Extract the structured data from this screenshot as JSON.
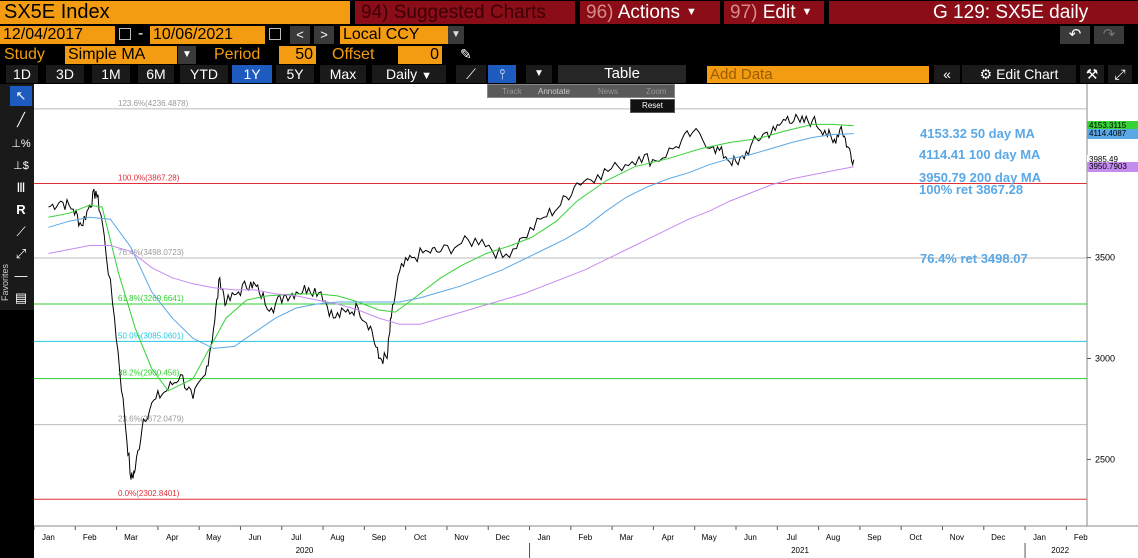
{
  "header": {
    "ticker": "SX5E Index",
    "suggested_num": "94)",
    "suggested_label": "Suggested Charts",
    "actions_num": "96)",
    "actions_label": "Actions",
    "edit_num": "97)",
    "edit_label": "Edit",
    "title": "G 129: SX5E daily"
  },
  "range": {
    "start_date": "12/04/2017",
    "separator": "-",
    "end_date": "10/06/2021",
    "currency": "Local CCY"
  },
  "study": {
    "study_label": "Study",
    "study_value": "Simple MA",
    "period_label": "Period",
    "period_value": "50",
    "offset_label": "Offset",
    "offset_value": "0"
  },
  "periods": [
    "1D",
    "3D",
    "1M",
    "6M",
    "YTD",
    "1Y",
    "5Y",
    "Max"
  ],
  "active_period": "1Y",
  "frequency": "Daily",
  "table_label": "Table",
  "add_data_placeholder": "Add Data",
  "edit_chart_label": "Edit Chart",
  "chart_tools": {
    "track": "Track",
    "annotate": "Annotate",
    "news": "News",
    "zoom": "Zoom",
    "reset": "Reset"
  },
  "sidebar": {
    "favorites_label": "Favorites"
  },
  "chart_data": {
    "type": "line",
    "x_months": [
      "Jan",
      "Feb",
      "Mar",
      "Apr",
      "May",
      "Jun",
      "Jul",
      "Aug",
      "Sep",
      "Oct",
      "Nov",
      "Dec",
      "Jan",
      "Feb",
      "Mar",
      "Apr",
      "May",
      "Jun",
      "Jul",
      "Aug",
      "Sep",
      "Oct",
      "Nov",
      "Dec",
      "Jan",
      "Feb"
    ],
    "x_years": [
      "2020",
      "2021",
      "2022"
    ],
    "y_ticks": [
      2500,
      3000,
      3500
    ],
    "ylim": [
      2170,
      4360
    ],
    "fib_levels": [
      {
        "label": "123.6%(4236.4878)",
        "value": 4236.4878,
        "color": "#bbbbbb"
      },
      {
        "label": "100.0%(3867.28)",
        "value": 3867.28,
        "color": "#e0303a"
      },
      {
        "label": "76.4%(3498.0723)",
        "value": 3498.0723,
        "color": "#bbbbbb"
      },
      {
        "label": "61.8%(3269.6641)",
        "value": 3269.6641,
        "color": "#2ed12e"
      },
      {
        "label": "50.0%(3085.0601)",
        "value": 3085.0601,
        "color": "#22c9e0"
      },
      {
        "label": "38.2%(2900.456)",
        "value": 2900.456,
        "color": "#2ed12e"
      },
      {
        "label": "23.6%(2672.0479)",
        "value": 2672.0479,
        "color": "#bbbbbb"
      },
      {
        "label": "0.0%(2302.8401)",
        "value": 2302.8401,
        "color": "#e0303a"
      }
    ],
    "annotations": [
      "4153.32 50 day MA",
      "4114.41 100 day MA",
      "3950.79 200 day MA",
      "100% ret 3867.28",
      "76.4% ret 3498.07"
    ],
    "price_labels": [
      {
        "text": "4153.3115",
        "value": 4153.3115,
        "color": "#36d236"
      },
      {
        "text": "4114.4087",
        "value": 4114.4087,
        "color": "#5aa8e6"
      },
      {
        "text": "3985.49",
        "value": 3985.49,
        "color": "#ffffff"
      },
      {
        "text": "3950.7903",
        "value": 3950.7903,
        "color": "#c58cf0"
      }
    ],
    "series": [
      {
        "name": "SX5E",
        "color": "#000000",
        "points": [
          [
            0.0,
            3750
          ],
          [
            0.3,
            3780
          ],
          [
            0.6,
            3740
          ],
          [
            0.8,
            3660
          ],
          [
            1.0,
            3760
          ],
          [
            1.15,
            3830
          ],
          [
            1.3,
            3680
          ],
          [
            1.6,
            3200
          ],
          [
            1.85,
            2700
          ],
          [
            2.0,
            2400
          ],
          [
            2.1,
            2450
          ],
          [
            2.3,
            2700
          ],
          [
            2.6,
            2800
          ],
          [
            2.9,
            2850
          ],
          [
            3.2,
            2920
          ],
          [
            3.5,
            2800
          ],
          [
            3.8,
            2920
          ],
          [
            4.0,
            3150
          ],
          [
            4.15,
            3400
          ],
          [
            4.3,
            3270
          ],
          [
            4.6,
            3330
          ],
          [
            4.9,
            3380
          ],
          [
            5.1,
            3330
          ],
          [
            5.4,
            3250
          ],
          [
            5.7,
            3310
          ],
          [
            6.0,
            3330
          ],
          [
            6.3,
            3350
          ],
          [
            6.6,
            3330
          ],
          [
            6.9,
            3200
          ],
          [
            7.2,
            3230
          ],
          [
            7.5,
            3250
          ],
          [
            7.8,
            3160
          ],
          [
            8.0,
            3000
          ],
          [
            8.2,
            3000
          ],
          [
            8.3,
            3200
          ],
          [
            8.5,
            3430
          ],
          [
            8.8,
            3500
          ],
          [
            9.2,
            3530
          ],
          [
            9.5,
            3530
          ],
          [
            10.0,
            3570
          ],
          [
            10.5,
            3590
          ],
          [
            11.0,
            3500
          ],
          [
            11.5,
            3600
          ],
          [
            12.0,
            3700
          ],
          [
            12.4,
            3760
          ],
          [
            12.8,
            3870
          ],
          [
            13.3,
            3910
          ],
          [
            13.8,
            3950
          ],
          [
            14.3,
            4000
          ],
          [
            14.7,
            3980
          ],
          [
            15.2,
            4050
          ],
          [
            15.6,
            4120
          ],
          [
            16.1,
            4050
          ],
          [
            16.4,
            4000
          ],
          [
            16.7,
            3960
          ],
          [
            17.0,
            4050
          ],
          [
            17.3,
            4110
          ],
          [
            17.6,
            4130
          ],
          [
            17.9,
            4200
          ],
          [
            18.2,
            4170
          ],
          [
            18.5,
            4180
          ],
          [
            18.8,
            4130
          ],
          [
            19.0,
            4070
          ],
          [
            19.2,
            4150
          ],
          [
            19.35,
            4050
          ],
          [
            19.5,
            3985
          ]
        ]
      },
      {
        "name": "50 day MA",
        "color": "#36d236",
        "points": [
          [
            0.0,
            3700
          ],
          [
            0.5,
            3720
          ],
          [
            1.0,
            3760
          ],
          [
            1.3,
            3750
          ],
          [
            1.7,
            3420
          ],
          [
            2.1,
            3150
          ],
          [
            2.5,
            2950
          ],
          [
            2.9,
            2840
          ],
          [
            3.2,
            2870
          ],
          [
            3.5,
            2900
          ],
          [
            3.9,
            3050
          ],
          [
            4.3,
            3200
          ],
          [
            4.8,
            3290
          ],
          [
            5.3,
            3310
          ],
          [
            6.0,
            3320
          ],
          [
            6.5,
            3320
          ],
          [
            7.0,
            3310
          ],
          [
            7.5,
            3280
          ],
          [
            8.0,
            3240
          ],
          [
            8.4,
            3230
          ],
          [
            8.8,
            3290
          ],
          [
            9.5,
            3400
          ],
          [
            10.0,
            3460
          ],
          [
            10.6,
            3520
          ],
          [
            11.2,
            3560
          ],
          [
            11.7,
            3600
          ],
          [
            12.3,
            3680
          ],
          [
            12.8,
            3780
          ],
          [
            13.5,
            3880
          ],
          [
            14.2,
            3950
          ],
          [
            15.0,
            3990
          ],
          [
            15.8,
            4040
          ],
          [
            16.5,
            4070
          ],
          [
            17.2,
            4090
          ],
          [
            17.8,
            4125
          ],
          [
            18.5,
            4160
          ],
          [
            19.0,
            4160
          ],
          [
            19.5,
            4153
          ]
        ]
      },
      {
        "name": "100 day MA",
        "color": "#5aa8e6",
        "points": [
          [
            0.0,
            3650
          ],
          [
            0.5,
            3680
          ],
          [
            1.0,
            3700
          ],
          [
            1.5,
            3690
          ],
          [
            2.0,
            3550
          ],
          [
            2.5,
            3330
          ],
          [
            3.0,
            3200
          ],
          [
            3.5,
            3100
          ],
          [
            4.0,
            3050
          ],
          [
            4.5,
            3060
          ],
          [
            5.0,
            3130
          ],
          [
            5.5,
            3200
          ],
          [
            6.0,
            3250
          ],
          [
            6.5,
            3270
          ],
          [
            7.0,
            3280
          ],
          [
            7.5,
            3280
          ],
          [
            8.0,
            3280
          ],
          [
            8.5,
            3280
          ],
          [
            9.0,
            3300
          ],
          [
            9.5,
            3330
          ],
          [
            10.0,
            3360
          ],
          [
            10.5,
            3400
          ],
          [
            11.0,
            3440
          ],
          [
            11.5,
            3490
          ],
          [
            12.0,
            3540
          ],
          [
            12.5,
            3590
          ],
          [
            13.0,
            3650
          ],
          [
            13.5,
            3730
          ],
          [
            14.0,
            3800
          ],
          [
            14.5,
            3850
          ],
          [
            15.0,
            3890
          ],
          [
            15.5,
            3920
          ],
          [
            16.0,
            3960
          ],
          [
            16.5,
            3990
          ],
          [
            17.0,
            4010
          ],
          [
            17.5,
            4040
          ],
          [
            18.0,
            4070
          ],
          [
            18.5,
            4095
          ],
          [
            19.0,
            4110
          ],
          [
            19.5,
            4114
          ]
        ]
      },
      {
        "name": "200 day MA",
        "color": "#c58cf0",
        "points": [
          [
            0.0,
            3520
          ],
          [
            0.5,
            3540
          ],
          [
            1.0,
            3560
          ],
          [
            1.5,
            3560
          ],
          [
            2.0,
            3530
          ],
          [
            2.5,
            3450
          ],
          [
            3.0,
            3400
          ],
          [
            3.5,
            3370
          ],
          [
            4.0,
            3350
          ],
          [
            4.5,
            3340
          ],
          [
            5.0,
            3340
          ],
          [
            5.5,
            3320
          ],
          [
            6.0,
            3310
          ],
          [
            6.5,
            3290
          ],
          [
            7.0,
            3270
          ],
          [
            7.5,
            3240
          ],
          [
            8.0,
            3200
          ],
          [
            8.5,
            3170
          ],
          [
            9.0,
            3170
          ],
          [
            9.5,
            3200
          ],
          [
            10.0,
            3230
          ],
          [
            10.5,
            3260
          ],
          [
            11.0,
            3290
          ],
          [
            11.5,
            3320
          ],
          [
            12.0,
            3360
          ],
          [
            12.5,
            3400
          ],
          [
            13.0,
            3440
          ],
          [
            13.5,
            3490
          ],
          [
            14.0,
            3540
          ],
          [
            14.5,
            3590
          ],
          [
            15.0,
            3640
          ],
          [
            15.5,
            3690
          ],
          [
            16.0,
            3730
          ],
          [
            16.5,
            3780
          ],
          [
            17.0,
            3820
          ],
          [
            17.5,
            3860
          ],
          [
            18.0,
            3890
          ],
          [
            18.5,
            3910
          ],
          [
            19.0,
            3930
          ],
          [
            19.5,
            3950
          ]
        ]
      }
    ]
  }
}
